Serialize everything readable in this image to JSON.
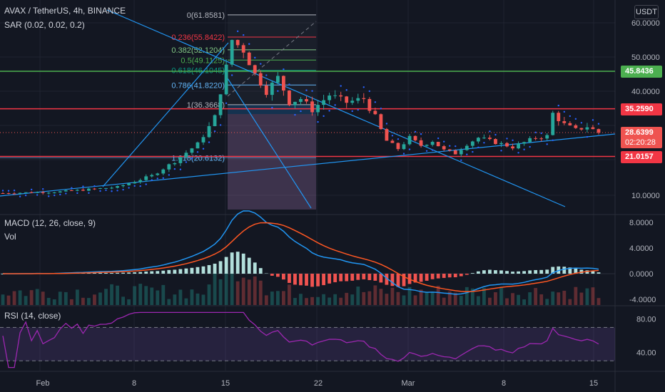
{
  "header": {
    "symbol_line": "AVAX / TetherUS, 4h, BINANCE",
    "sar_line": "SAR (0.02, 0.02, 0.2)",
    "currency": "USDT"
  },
  "macd_panel": {
    "title": "MACD (12, 26, close, 9)",
    "vol": "Vol"
  },
  "rsi_panel": {
    "title": "RSI (14, close)"
  },
  "colors": {
    "bg": "#131722",
    "up": "#26a69a",
    "down": "#ef5350",
    "grid": "#1f2330",
    "hline_red": "#f23645",
    "hline_green": "#4caf50",
    "trend": "#2196f3",
    "sar": "#2962ff",
    "macd": "#2196f3",
    "signal": "#ff5722",
    "rsi": "#9c27b0"
  },
  "x_ticks": [
    "Feb",
    "8",
    "15",
    "22",
    "Mar",
    "8",
    "15"
  ],
  "main_y_ticks": [
    "60.0000",
    "50.0000",
    "40.0000",
    "10.0000"
  ],
  "macd_y_ticks": [
    "8.0000",
    "4.0000",
    "0.0000",
    "-4.0000"
  ],
  "rsi_y_ticks": [
    "80.00",
    "40.00"
  ],
  "price_badges": [
    {
      "value": "45.8436",
      "color": "#4caf50"
    },
    {
      "value": "35.2590",
      "color": "#f23645"
    },
    {
      "value": "28.6399",
      "sub": "02:20:28",
      "color": "#ef5350"
    },
    {
      "value": "21.0157",
      "color": "#f23645"
    }
  ],
  "horizontal_levels": [
    {
      "price": 45.8436,
      "color": "green"
    },
    {
      "price": 35.259,
      "color": "red"
    },
    {
      "price": 21.0157,
      "color": "red"
    }
  ],
  "fib_labels": [
    {
      "text": "0(61.8581)",
      "price": 61.8581,
      "color": "#b2b5be"
    },
    {
      "text": "0.236(55.8422)",
      "price": 55.8422,
      "color": "#f23645"
    },
    {
      "text": "0.382(52.1204)",
      "price": 52.1204,
      "color": "#81c784"
    },
    {
      "text": "0.5(49.1125)",
      "price": 49.1125,
      "color": "#4caf50"
    },
    {
      "text": "0.618(46.1045)",
      "price": 46.1045,
      "color": "#089981"
    },
    {
      "text": "0.786(41.8220)",
      "price": 41.822,
      "color": "#64b5f6"
    },
    {
      "text": "1(36.3668)",
      "price": 36.3668,
      "color": "#b2b5be"
    },
    {
      "text": "1.618(20.6132)",
      "price": 20.6132,
      "color": "#64b5f6"
    }
  ],
  "chart_data": {
    "type": "candlestick",
    "title": "AVAX / TetherUS, 4h, BINANCE",
    "x_labels": [
      "Feb",
      "8",
      "15",
      "22",
      "Mar",
      "8",
      "15"
    ],
    "price_ticks": [
      60,
      50,
      40,
      10
    ],
    "close_path": [
      [
        0,
        10.6
      ],
      [
        10,
        11.0
      ],
      [
        20,
        12.3
      ],
      [
        26,
        15.5
      ],
      [
        30,
        19.5
      ],
      [
        34,
        25.0
      ],
      [
        37,
        33.0
      ],
      [
        39,
        47.0
      ],
      [
        40,
        55.0
      ],
      [
        42,
        52.0
      ],
      [
        44,
        45.0
      ],
      [
        46,
        40.0
      ],
      [
        48,
        44.0
      ],
      [
        50,
        37.0
      ],
      [
        52,
        38.0
      ],
      [
        54,
        35.0
      ],
      [
        57,
        39.0
      ],
      [
        60,
        37.0
      ],
      [
        63,
        38.0
      ],
      [
        65,
        33.0
      ],
      [
        67,
        26.0
      ],
      [
        69,
        23.5
      ],
      [
        71,
        27.0
      ],
      [
        73,
        24.5
      ],
      [
        75,
        26.0
      ],
      [
        77,
        23.0
      ],
      [
        79,
        22.0
      ],
      [
        81,
        25.0
      ],
      [
        83,
        27.0
      ],
      [
        85,
        26.0
      ],
      [
        87,
        25.0
      ],
      [
        89,
        24.0
      ],
      [
        91,
        25.5
      ],
      [
        93,
        27.0
      ],
      [
        95,
        27.5
      ],
      [
        96,
        34.0
      ],
      [
        98,
        31.0
      ],
      [
        100,
        29.5
      ],
      [
        102,
        30.5
      ],
      [
        104,
        28.64
      ]
    ],
    "macd_range": [
      -4,
      8
    ],
    "rsi_levels": [
      70,
      30
    ],
    "rsi_range": [
      20,
      90
    ],
    "last_price": 28.6399
  }
}
